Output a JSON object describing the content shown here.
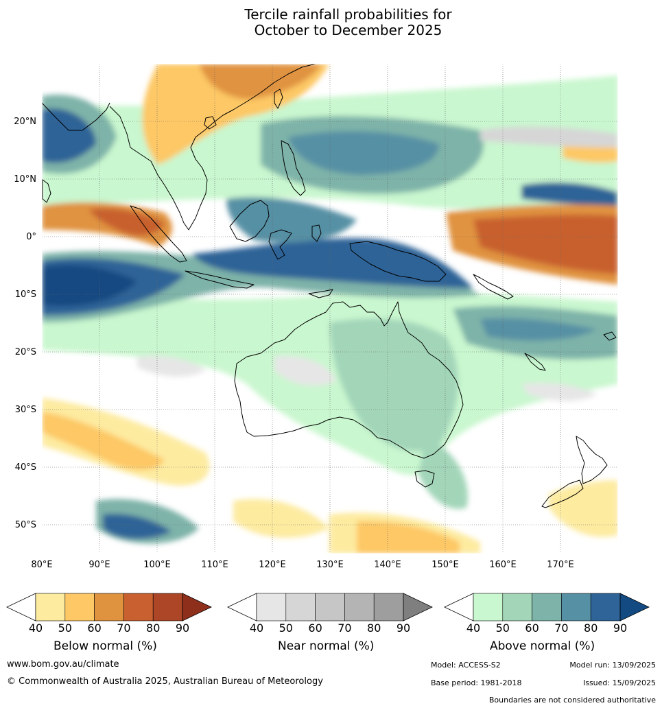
{
  "title": {
    "line1": "Tercile rainfall probabilities for",
    "line2": "October to December 2025"
  },
  "map": {
    "lon_ticks": [
      "80°E",
      "90°E",
      "100°E",
      "110°E",
      "120°E",
      "130°E",
      "140°E",
      "150°E",
      "160°E",
      "170°E"
    ],
    "lat_ticks": [
      "20°N",
      "10°N",
      "0°",
      "10°S",
      "20°S",
      "30°S",
      "40°S",
      "50°S"
    ],
    "lon_range": [
      80,
      180
    ],
    "lat_range": [
      -55,
      30
    ]
  },
  "colorbars": [
    {
      "title": "Below normal (%)",
      "ticks": [
        "40",
        "50",
        "60",
        "70",
        "80",
        "90"
      ],
      "colors": [
        "#fdeba0",
        "#fdc865",
        "#e0933f",
        "#c8612f",
        "#ad4627",
        "#8e2f1c"
      ]
    },
    {
      "title": "Near normal (%)",
      "ticks": [
        "40",
        "50",
        "60",
        "70",
        "80",
        "90"
      ],
      "colors": [
        "#e6e6e6",
        "#d6d6d6",
        "#c6c6c6",
        "#b4b4b4",
        "#9e9e9e",
        "#7f7f7f"
      ]
    },
    {
      "title": "Above normal (%)",
      "ticks": [
        "40",
        "50",
        "60",
        "70",
        "80",
        "90"
      ],
      "colors": [
        "#c9f7cf",
        "#a3d6b9",
        "#7eb3a9",
        "#5690a4",
        "#2e6497",
        "#124a81"
      ]
    }
  ],
  "footer": {
    "url": "www.bom.gov.au/climate",
    "copyright": "© Commonwealth of Australia 2025, Australian Bureau of Meteorology",
    "model": "Model: ACCESS-S2",
    "model_run": "Model run: 13/09/2025",
    "base_period": "Base period: 1981-2018",
    "issued": "Issued: 15/09/2025",
    "disclaimer": "Boundaries are not considered authoritative"
  }
}
